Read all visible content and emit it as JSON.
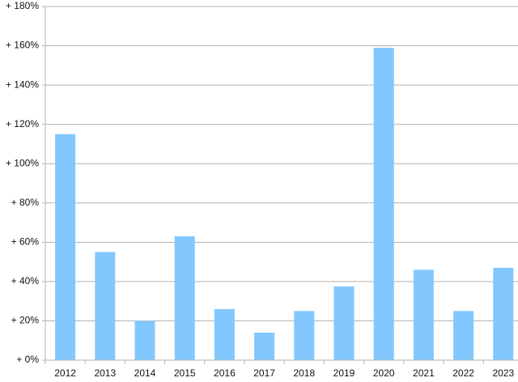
{
  "chart_data": {
    "type": "bar",
    "categories": [
      "2012",
      "2013",
      "2014",
      "2015",
      "2016",
      "2017",
      "2018",
      "2019",
      "2020",
      "2021",
      "2022",
      "2023"
    ],
    "values": [
      115,
      55,
      20,
      63,
      26,
      14,
      25,
      37.5,
      159,
      46,
      25,
      47
    ],
    "color": "#82c8fe",
    "ylim": [
      0,
      180
    ],
    "yticks": [
      {
        "value": 0,
        "label": "+ 0%"
      },
      {
        "value": 20,
        "label": "+ 20%"
      },
      {
        "value": 40,
        "label": "+ 40%"
      },
      {
        "value": 60,
        "label": "+ 60%"
      },
      {
        "value": 80,
        "label": "+ 80%"
      },
      {
        "value": 100,
        "label": "+ 100%"
      },
      {
        "value": 120,
        "label": "+ 120%"
      },
      {
        "value": 140,
        "label": "+ 140%"
      },
      {
        "value": 160,
        "label": "+ 160%"
      },
      {
        "value": 180,
        "label": "+ 180%"
      }
    ],
    "grid": true
  }
}
